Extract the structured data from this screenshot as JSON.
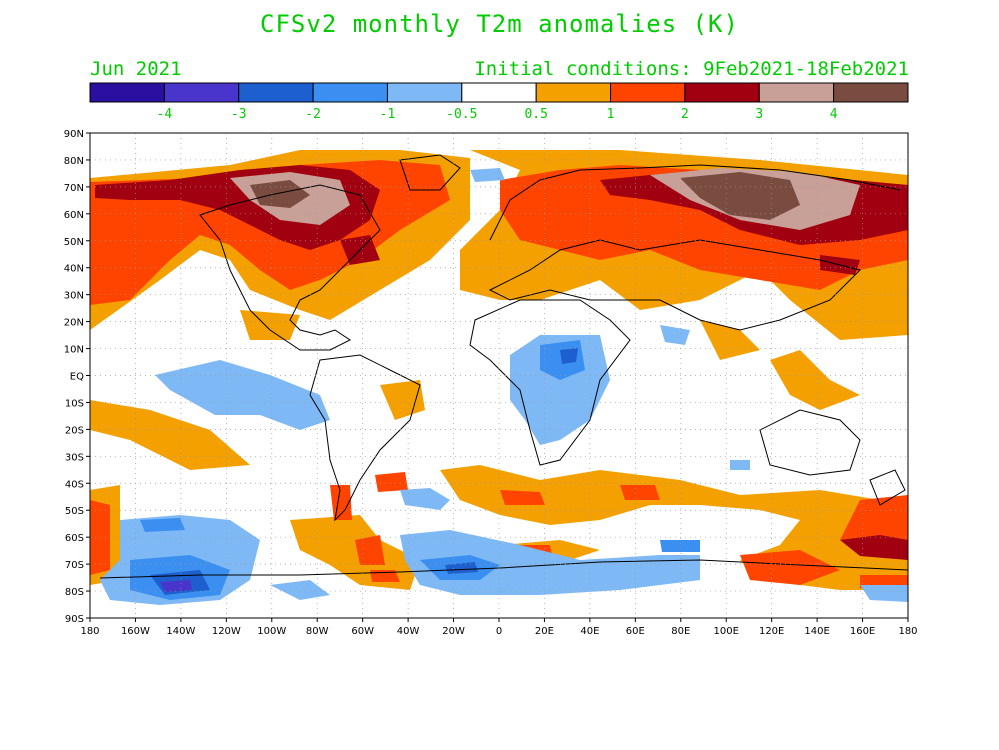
{
  "title": "CFSv2 monthly T2m anomalies (K)",
  "month_label": "Jun 2021",
  "init_label": "Initial conditions: 9Feb2021-18Feb2021",
  "colorbar": {
    "colors": [
      "#2a0fa0",
      "#4a35cc",
      "#1e5fd0",
      "#3a8ff0",
      "#7fb9f5",
      "#ffffff",
      "#f4a000",
      "#ff4400",
      "#a00010",
      "#c8a098",
      "#7a4c40"
    ],
    "labels": [
      "-4",
      "-3",
      "-2",
      "-1",
      "-0.5",
      "0.5",
      "1",
      "2",
      "3",
      "4"
    ],
    "label_color": "#00cc00"
  },
  "lat_labels": [
    "90N",
    "80N",
    "70N",
    "60N",
    "50N",
    "40N",
    "30N",
    "20N",
    "10N",
    "EQ",
    "10S",
    "20S",
    "30S",
    "40S",
    "50S",
    "60S",
    "70S",
    "80S",
    "90S"
  ],
  "lon_labels": [
    "180",
    "160W",
    "140W",
    "120W",
    "100W",
    "80W",
    "60W",
    "40W",
    "20W",
    "0",
    "20E",
    "40E",
    "60E",
    "80E",
    "100E",
    "120E",
    "140E",
    "160E",
    "180"
  ],
  "colors": {
    "warm1": "#f4a000",
    "warm2": "#ff4400",
    "warm3": "#a00010",
    "warm4": "#c8a098",
    "warm5": "#7a4c40",
    "cool1": "#7fb9f5",
    "cool2": "#3a8ff0",
    "cool3": "#1e5fd0",
    "cool4": "#4a35cc",
    "text": "#00cc00",
    "coast": "#000000",
    "grid": "#999999"
  }
}
